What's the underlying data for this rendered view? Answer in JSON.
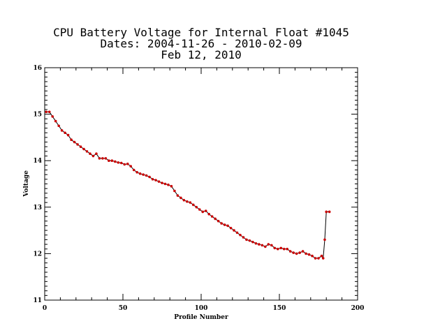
{
  "chart_data": {
    "type": "line",
    "title_lines": [
      "CPU Battery Voltage for Internal Float #1045",
      "Dates:  2004-11-26 -  2010-02-09",
      "Feb 12, 2010"
    ],
    "xlabel": "Profile Number",
    "ylabel": "Voltage",
    "xlim": [
      0,
      200
    ],
    "ylim": [
      11,
      16
    ],
    "x_ticks": [
      0,
      50,
      100,
      150,
      200
    ],
    "y_ticks": [
      11,
      12,
      13,
      14,
      15,
      16
    ],
    "line_color": "#000000",
    "marker_color": "#cc0000",
    "grid": false,
    "series": [
      {
        "x": [
          1,
          3,
          5,
          7,
          9,
          11,
          13,
          15,
          17,
          19,
          21,
          23,
          25,
          27,
          29,
          31,
          33,
          35,
          37,
          39,
          41,
          43,
          45,
          47,
          49,
          51,
          53,
          55,
          57,
          59,
          61,
          63,
          65,
          67,
          69,
          71,
          73,
          75,
          77,
          79,
          81,
          83,
          85,
          87,
          89,
          91,
          93,
          95,
          97,
          99,
          101,
          103,
          105,
          107,
          109,
          111,
          113,
          115,
          117,
          119,
          121,
          123,
          125,
          127,
          129,
          131,
          133,
          135,
          137,
          139,
          141,
          143,
          145,
          147,
          149,
          151,
          153,
          155,
          157,
          159,
          161,
          163,
          165,
          167,
          169,
          171,
          173,
          175,
          177,
          178,
          179,
          180,
          182
        ],
        "y": [
          15.05,
          15.05,
          14.95,
          14.85,
          14.75,
          14.65,
          14.6,
          14.55,
          14.45,
          14.4,
          14.35,
          14.3,
          14.25,
          14.2,
          14.15,
          14.1,
          14.15,
          14.05,
          14.05,
          14.05,
          14.0,
          14.0,
          13.98,
          13.96,
          13.95,
          13.92,
          13.93,
          13.88,
          13.8,
          13.75,
          13.72,
          13.7,
          13.68,
          13.65,
          13.6,
          13.58,
          13.55,
          13.52,
          13.5,
          13.48,
          13.45,
          13.35,
          13.25,
          13.2,
          13.15,
          13.12,
          13.1,
          13.05,
          13.0,
          12.95,
          12.9,
          12.92,
          12.85,
          12.8,
          12.75,
          12.7,
          12.65,
          12.62,
          12.6,
          12.55,
          12.5,
          12.45,
          12.4,
          12.35,
          12.3,
          12.28,
          12.25,
          12.22,
          12.2,
          12.18,
          12.15,
          12.2,
          12.18,
          12.12,
          12.1,
          12.12,
          12.1,
          12.1,
          12.05,
          12.02,
          12.0,
          12.02,
          12.05,
          12.0,
          11.98,
          11.95,
          11.9,
          11.9,
          11.95,
          11.9,
          12.3,
          12.9,
          12.9
        ]
      }
    ]
  }
}
